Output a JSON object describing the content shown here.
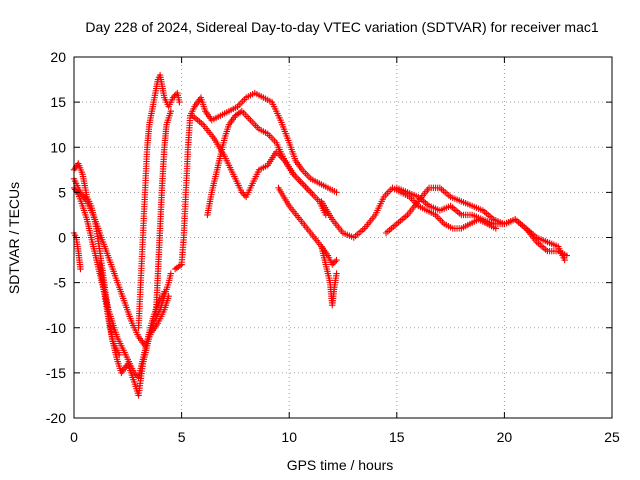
{
  "chart_data": {
    "type": "scatter",
    "title": "Day 228 of 2024, Sidereal Day-to-day VTEC variation (SDTVAR) for receiver mac1",
    "xlabel": "GPS time / hours",
    "ylabel": "SDTVAR / TECUs",
    "xlim": [
      0,
      25
    ],
    "ylim": [
      -20,
      20
    ],
    "xticks": [
      0,
      5,
      10,
      15,
      20,
      25
    ],
    "yticks": [
      -20,
      -15,
      -10,
      -5,
      0,
      5,
      10,
      15,
      20
    ],
    "grid": true,
    "marker": "+",
    "series": [
      {
        "name": "SDTVAR",
        "color": "#ff0000",
        "tracks": [
          [
            [
              0.0,
              7.5
            ],
            [
              0.2,
              8.2
            ],
            [
              0.4,
              7.0
            ],
            [
              0.6,
              4.5
            ],
            [
              0.8,
              3.5
            ],
            [
              1.0,
              1.5
            ],
            [
              1.2,
              -1.5
            ],
            [
              1.4,
              -5.0
            ],
            [
              1.6,
              -8.5
            ],
            [
              1.8,
              -11.5
            ],
            [
              2.0,
              -13.5
            ],
            [
              2.2,
              -15.0
            ],
            [
              2.5,
              -14.0
            ],
            [
              2.8,
              -16.0
            ],
            [
              3.0,
              -17.5
            ],
            [
              3.2,
              -14.0
            ],
            [
              3.4,
              -12.0
            ],
            [
              3.6,
              -10.0
            ],
            [
              3.8,
              -9.0
            ],
            [
              4.0,
              -8.0
            ],
            [
              4.2,
              -6.5
            ],
            [
              4.4,
              -5.0
            ],
            [
              4.5,
              -4.0
            ]
          ],
          [
            [
              0.0,
              5.5
            ],
            [
              0.2,
              4.8
            ],
            [
              0.4,
              3.5
            ],
            [
              0.6,
              2.0
            ],
            [
              0.8,
              0.0
            ],
            [
              1.0,
              -2.0
            ],
            [
              1.2,
              -4.0
            ],
            [
              1.4,
              -6.0
            ],
            [
              1.6,
              -8.0
            ],
            [
              1.8,
              -9.5
            ],
            [
              2.0,
              -11.0
            ],
            [
              2.2,
              -12.0
            ],
            [
              2.4,
              -13.0
            ],
            [
              2.6,
              -14.0
            ],
            [
              2.8,
              -15.0
            ],
            [
              3.0,
              -15.5
            ],
            [
              3.2,
              -13.5
            ],
            [
              3.4,
              -11.5
            ],
            [
              3.6,
              -9.5
            ],
            [
              3.8,
              -8.0
            ],
            [
              4.0,
              -7.0
            ],
            [
              4.2,
              -6.0
            ]
          ],
          [
            [
              0.0,
              6.5
            ],
            [
              0.3,
              5.0
            ],
            [
              0.6,
              4.0
            ],
            [
              0.9,
              2.5
            ],
            [
              1.2,
              0.5
            ],
            [
              1.5,
              -1.5
            ],
            [
              1.8,
              -3.5
            ],
            [
              2.1,
              -5.5
            ],
            [
              2.4,
              -7.5
            ],
            [
              2.7,
              -9.5
            ],
            [
              3.0,
              -11.0
            ],
            [
              3.3,
              -12.0
            ],
            [
              3.6,
              -10.5
            ],
            [
              3.9,
              -9.5
            ],
            [
              4.2,
              -8.0
            ],
            [
              4.4,
              -6.5
            ]
          ],
          [
            [
              0.0,
              0.5
            ],
            [
              0.1,
              0.0
            ],
            [
              0.2,
              -1.5
            ],
            [
              0.3,
              -3.5
            ]
          ],
          [
            [
              1.2,
              -3.0
            ],
            [
              1.4,
              -6.0
            ],
            [
              1.6,
              -9.0
            ],
            [
              1.8,
              -11.5
            ],
            [
              2.0,
              -12.5
            ],
            [
              2.1,
              -13.0
            ]
          ],
          [
            [
              3.0,
              -10.0
            ],
            [
              3.1,
              -5.0
            ],
            [
              3.2,
              0.0
            ],
            [
              3.3,
              5.0
            ],
            [
              3.4,
              10.0
            ],
            [
              3.5,
              12.5
            ],
            [
              3.7,
              15.0
            ],
            [
              3.9,
              17.5
            ],
            [
              4.0,
              18.0
            ],
            [
              4.2,
              15.5
            ],
            [
              4.4,
              14.5
            ],
            [
              4.6,
              15.5
            ],
            [
              4.8,
              16.0
            ],
            [
              4.9,
              15.0
            ]
          ],
          [
            [
              3.8,
              -9.0
            ],
            [
              3.9,
              -4.0
            ],
            [
              4.0,
              1.0
            ],
            [
              4.1,
              6.0
            ],
            [
              4.2,
              10.0
            ],
            [
              4.3,
              12.5
            ],
            [
              4.5,
              14.0
            ]
          ],
          [
            [
              4.7,
              -3.5
            ],
            [
              5.0,
              -3.0
            ],
            [
              5.1,
              0.0
            ],
            [
              5.2,
              5.0
            ],
            [
              5.3,
              10.0
            ],
            [
              5.4,
              13.5
            ],
            [
              5.6,
              14.5
            ],
            [
              5.9,
              15.5
            ],
            [
              6.1,
              14.0
            ],
            [
              6.4,
              13.0
            ],
            [
              6.8,
              13.5
            ],
            [
              7.2,
              14.0
            ],
            [
              7.6,
              14.5
            ],
            [
              8.0,
              15.5
            ],
            [
              8.4,
              16.0
            ],
            [
              8.8,
              15.5
            ],
            [
              9.2,
              15.0
            ],
            [
              9.6,
              13.0
            ],
            [
              10.0,
              10.5
            ],
            [
              10.3,
              8.5
            ],
            [
              10.6,
              7.5
            ],
            [
              11.0,
              6.5
            ],
            [
              11.4,
              6.0
            ],
            [
              11.8,
              5.5
            ],
            [
              12.2,
              5.0
            ]
          ],
          [
            [
              6.2,
              2.5
            ],
            [
              6.4,
              5.0
            ],
            [
              6.6,
              7.0
            ],
            [
              6.8,
              9.0
            ],
            [
              7.0,
              11.0
            ],
            [
              7.2,
              12.5
            ],
            [
              7.5,
              13.5
            ],
            [
              7.8,
              14.0
            ],
            [
              8.2,
              13.0
            ],
            [
              8.6,
              12.0
            ],
            [
              9.0,
              11.5
            ],
            [
              9.4,
              10.5
            ],
            [
              9.8,
              8.5
            ],
            [
              10.2,
              7.0
            ],
            [
              10.6,
              6.0
            ],
            [
              11.0,
              5.0
            ]
          ],
          [
            [
              5.5,
              13.5
            ],
            [
              6.0,
              12.5
            ],
            [
              6.5,
              11.0
            ],
            [
              7.0,
              9.0
            ],
            [
              7.4,
              7.0
            ],
            [
              7.8,
              5.0
            ],
            [
              8.0,
              4.5
            ],
            [
              8.3,
              6.0
            ],
            [
              8.6,
              7.5
            ],
            [
              9.0,
              8.0
            ],
            [
              9.4,
              9.5
            ],
            [
              9.8,
              8.5
            ],
            [
              10.2,
              7.0
            ],
            [
              10.6,
              6.0
            ],
            [
              11.0,
              5.0
            ],
            [
              11.4,
              4.0
            ],
            [
              11.7,
              2.5
            ]
          ],
          [
            [
              9.5,
              5.5
            ],
            [
              10.0,
              3.5
            ],
            [
              10.5,
              2.0
            ],
            [
              11.0,
              0.5
            ],
            [
              11.5,
              -1.0
            ],
            [
              11.8,
              -2.0
            ],
            [
              12.0,
              -3.0
            ],
            [
              12.2,
              -2.5
            ]
          ],
          [
            [
              11.5,
              -1.0
            ],
            [
              11.7,
              -3.0
            ],
            [
              11.9,
              -5.0
            ],
            [
              12.0,
              -7.5
            ],
            [
              12.1,
              -5.5
            ],
            [
              12.2,
              -4.0
            ]
          ],
          [
            [
              11.5,
              4.0
            ],
            [
              12.0,
              2.0
            ],
            [
              12.5,
              0.5
            ],
            [
              13.0,
              0.0
            ],
            [
              13.5,
              1.0
            ],
            [
              14.0,
              2.5
            ],
            [
              14.4,
              4.5
            ],
            [
              14.8,
              5.5
            ],
            [
              15.2,
              5.0
            ],
            [
              15.6,
              4.5
            ],
            [
              16.0,
              3.5
            ],
            [
              16.4,
              3.0
            ],
            [
              16.8,
              2.5
            ],
            [
              17.2,
              1.5
            ],
            [
              17.6,
              1.0
            ],
            [
              18.0,
              1.0
            ],
            [
              18.4,
              1.5
            ],
            [
              18.8,
              2.0
            ],
            [
              19.2,
              1.5
            ],
            [
              19.6,
              1.0
            ]
          ],
          [
            [
              14.5,
              0.5
            ],
            [
              15.0,
              1.5
            ],
            [
              15.5,
              2.5
            ],
            [
              16.0,
              4.0
            ],
            [
              16.5,
              5.5
            ],
            [
              17.0,
              5.5
            ],
            [
              17.5,
              4.5
            ],
            [
              18.0,
              4.0
            ],
            [
              18.5,
              3.5
            ],
            [
              19.0,
              3.0
            ],
            [
              19.5,
              2.0
            ],
            [
              20.0,
              1.5
            ],
            [
              20.5,
              2.0
            ],
            [
              21.0,
              1.0
            ],
            [
              21.5,
              -0.5
            ],
            [
              22.0,
              -1.5
            ],
            [
              22.5,
              -1.5
            ],
            [
              22.9,
              -2.0
            ]
          ],
          [
            [
              15.0,
              5.5
            ],
            [
              15.5,
              5.0
            ],
            [
              16.0,
              4.5
            ],
            [
              16.5,
              3.5
            ],
            [
              17.0,
              3.0
            ],
            [
              17.5,
              3.5
            ],
            [
              18.0,
              2.5
            ],
            [
              18.5,
              2.5
            ],
            [
              19.0,
              2.0
            ],
            [
              19.5,
              1.5
            ],
            [
              20.0,
              1.5
            ],
            [
              20.5,
              2.0
            ],
            [
              21.0,
              1.0
            ],
            [
              21.5,
              0.0
            ],
            [
              22.0,
              -0.5
            ],
            [
              22.5,
              -1.0
            ],
            [
              22.8,
              -2.5
            ]
          ]
        ]
      }
    ]
  }
}
